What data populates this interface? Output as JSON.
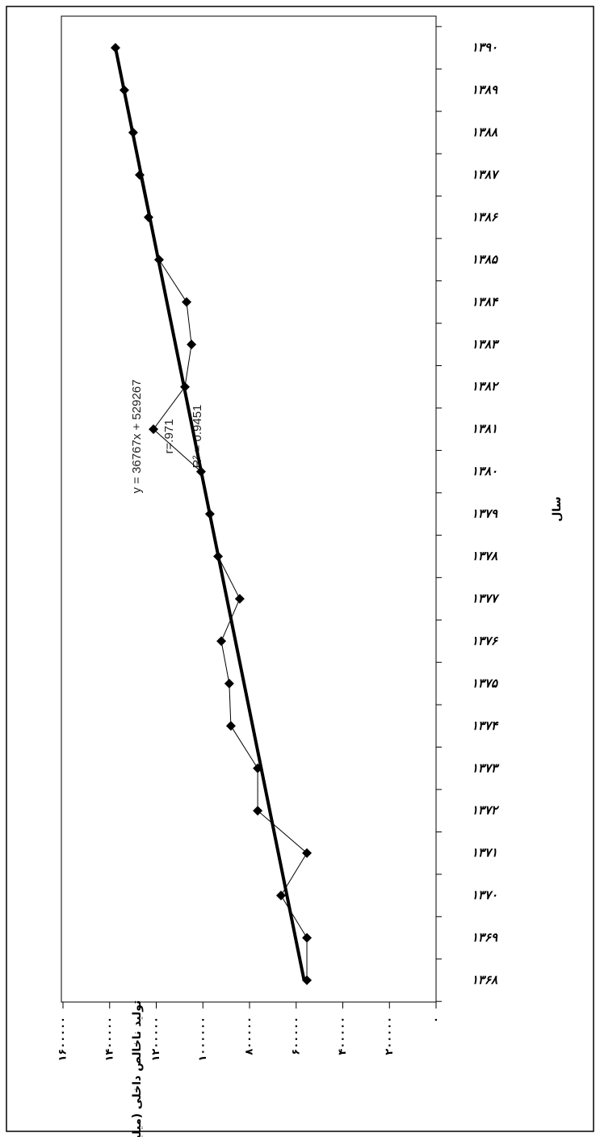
{
  "chart_data": {
    "type": "line",
    "orientation": "horizontal-values",
    "x_axis_title": "تولید ناخالص داخلی (میلیارد ریال)",
    "category_axis_title": "سال",
    "categories": [
      "۱۳۶۸",
      "۱۳۶۹",
      "۱۳۷۰",
      "۱۳۷۱",
      "۱۳۷۲",
      "۱۳۷۳",
      "۱۳۷۴",
      "۱۳۷۵",
      "۱۳۷۶",
      "۱۳۷۷",
      "۱۳۷۸",
      "۱۳۷۹",
      "۱۳۸۰",
      "۱۳۸۱",
      "۱۳۸۲",
      "۱۳۸۳",
      "۱۳۸۴",
      "۱۳۸۵",
      "۱۳۸۶",
      "۱۳۸۷",
      "۱۳۸۸",
      "۱۳۸۹",
      "۱۳۹۰"
    ],
    "values": [
      554000,
      554000,
      665000,
      554000,
      765000,
      765000,
      880000,
      887000,
      921000,
      842000,
      935000,
      970000,
      1008000,
      1212000,
      1077000,
      1049000,
      1070000,
      1188000,
      1233000,
      1271000,
      1299000,
      1337000,
      1375000
    ],
    "color": "#000000",
    "trendline": {
      "slope": 36767,
      "intercept": 529267,
      "color": "#000000"
    },
    "annotations": [
      "y = 36767x + 529267",
      "r=.971",
      "R² = 0.9451"
    ],
    "xlim": [
      0,
      1600000
    ],
    "xticks": [
      {
        "value": 0,
        "label": "۰"
      },
      {
        "value": 200000,
        "label": "۲۰۰۰۰۰"
      },
      {
        "value": 400000,
        "label": "۴۰۰۰۰۰"
      },
      {
        "value": 600000,
        "label": "۶۰۰۰۰۰"
      },
      {
        "value": 800000,
        "label": "۸۰۰۰۰۰"
      },
      {
        "value": 1000000,
        "label": "۱۰۰۰۰۰۰"
      },
      {
        "value": 1200000,
        "label": "۱۲۰۰۰۰۰"
      },
      {
        "value": 1400000,
        "label": "۱۴۰۰۰۰۰"
      },
      {
        "value": 1600000,
        "label": "۱۶۰۰۰۰۰"
      }
    ],
    "grid": false
  }
}
